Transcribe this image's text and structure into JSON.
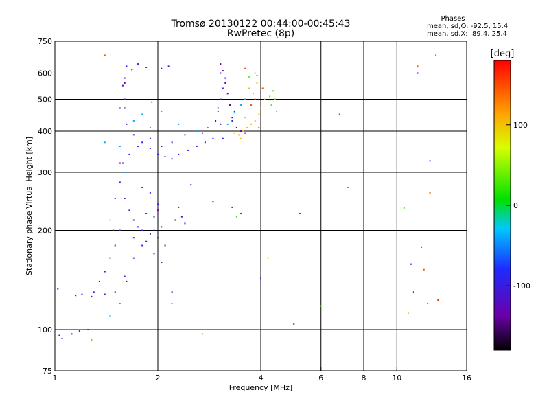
{
  "chart_data": {
    "type": "scatter",
    "title": "Tromsø 20130122 00:44:00-00:45:43",
    "subtitle": "RwPretec (8p)",
    "stats": {
      "heading": "Phases",
      "line_o": "mean, sd,O: -92.5, 15.4",
      "line_x": "mean, sd,X:  89.4, 25.4"
    },
    "xlabel": "Frequency [MHz]",
    "ylabel": "Stationary phase Virtual Height [km]",
    "x_scale": "log",
    "y_scale": "log",
    "xlim": [
      1,
      16
    ],
    "ylim": [
      75,
      750
    ],
    "xticks": [
      1,
      2,
      4,
      6,
      8,
      10,
      16
    ],
    "yticks": [
      75,
      100,
      200,
      300,
      400,
      500,
      600,
      750
    ],
    "x_gridlines": [
      2,
      4,
      6,
      8,
      10
    ],
    "y_gridlines": [
      100,
      200,
      300,
      400,
      500,
      600
    ],
    "grid": true,
    "colorbar": {
      "label": "[deg]",
      "range": [
        -180,
        180
      ],
      "ticks": [
        100,
        0,
        -100
      ],
      "colormap": "rainbow-black-to-red"
    },
    "series": [
      {
        "color_value": -95,
        "points": [
          [
            1.62,
            630
          ],
          [
            1.68,
            615
          ],
          [
            1.75,
            640
          ],
          [
            1.85,
            625
          ],
          [
            2.05,
            620
          ],
          [
            2.15,
            630
          ],
          [
            1.55,
            470
          ],
          [
            1.62,
            420
          ],
          [
            1.7,
            390
          ],
          [
            1.8,
            370
          ],
          [
            1.9,
            355
          ],
          [
            2.0,
            340
          ],
          [
            2.1,
            335
          ],
          [
            2.2,
            330
          ],
          [
            2.3,
            340
          ],
          [
            2.45,
            350
          ],
          [
            2.6,
            360
          ],
          [
            2.75,
            370
          ],
          [
            2.9,
            380
          ],
          [
            1.58,
            320
          ],
          [
            1.65,
            340
          ],
          [
            1.75,
            360
          ],
          [
            1.9,
            380
          ],
          [
            2.05,
            360
          ],
          [
            2.2,
            370
          ],
          [
            2.4,
            390
          ],
          [
            2.7,
            395
          ],
          [
            1.6,
            500
          ],
          [
            1.58,
            550
          ],
          [
            1.6,
            580
          ],
          [
            1.55,
            280
          ],
          [
            1.6,
            250
          ],
          [
            1.65,
            230
          ],
          [
            1.7,
            215
          ],
          [
            1.75,
            205
          ],
          [
            1.8,
            200
          ],
          [
            1.9,
            195
          ],
          [
            2.0,
            190
          ],
          [
            1.55,
            200
          ],
          [
            1.5,
            180
          ],
          [
            1.45,
            165
          ],
          [
            1.4,
            150
          ],
          [
            1.35,
            140
          ],
          [
            1.3,
            130
          ],
          [
            1.2,
            128
          ],
          [
            1.15,
            127
          ],
          [
            1.28,
            126
          ],
          [
            1.4,
            128
          ],
          [
            1.5,
            130
          ],
          [
            1.6,
            145
          ],
          [
            1.7,
            165
          ],
          [
            1.8,
            180
          ],
          [
            1.95,
            170
          ],
          [
            2.05,
            160
          ],
          [
            1.85,
            225
          ],
          [
            1.95,
            220
          ],
          [
            2.05,
            205
          ],
          [
            2.0,
            240
          ],
          [
            1.9,
            260
          ],
          [
            1.8,
            270
          ],
          [
            2.3,
            235
          ],
          [
            2.35,
            220
          ],
          [
            2.4,
            210
          ],
          [
            2.5,
            275
          ],
          [
            1.03,
            96
          ],
          [
            1.05,
            94
          ],
          [
            1.12,
            97
          ],
          [
            1.18,
            99
          ],
          [
            1.25,
            100
          ],
          [
            1.02,
            133
          ],
          [
            3.1,
            380
          ],
          [
            3.05,
            420
          ],
          [
            3.0,
            460
          ],
          [
            3.05,
            500
          ],
          [
            3.1,
            540
          ],
          [
            3.15,
            580
          ],
          [
            3.05,
            600
          ],
          [
            3.3,
            430
          ],
          [
            3.35,
            460
          ],
          [
            2.9,
            245
          ],
          [
            3.3,
            235
          ],
          [
            3.5,
            225
          ],
          [
            4.0,
            143
          ],
          [
            5.0,
            104
          ],
          [
            5.2,
            225
          ],
          [
            11.5,
            600
          ],
          [
            12.5,
            325
          ],
          [
            11.0,
            158
          ],
          [
            11.2,
            130
          ]
        ]
      },
      {
        "color_value": -140,
        "points": [
          [
            3.05,
            640
          ],
          [
            3.1,
            610
          ],
          [
            3.15,
            560
          ],
          [
            3.2,
            520
          ],
          [
            3.25,
            480
          ],
          [
            3.3,
            440
          ],
          [
            3.4,
            410
          ],
          [
            3.5,
            400
          ],
          [
            3.6,
            395
          ],
          [
            3.0,
            470
          ],
          [
            2.95,
            430
          ],
          [
            1.6,
            470
          ],
          [
            1.6,
            560
          ],
          [
            1.55,
            320
          ],
          [
            1.62,
            140
          ],
          [
            1.48,
            200
          ],
          [
            1.7,
            190
          ],
          [
            1.85,
            185
          ],
          [
            2.1,
            180
          ],
          [
            2.0,
            230
          ],
          [
            1.5,
            250
          ],
          [
            1.95,
            200
          ],
          [
            2.25,
            215
          ],
          [
            2.2,
            130
          ]
        ]
      },
      {
        "color_value": -40,
        "points": [
          [
            1.6,
            300
          ],
          [
            1.55,
            360
          ],
          [
            1.7,
            430
          ],
          [
            1.8,
            450
          ],
          [
            1.9,
            410
          ],
          [
            2.3,
            420
          ],
          [
            2.6,
            400
          ],
          [
            2.8,
            410
          ],
          [
            3.2,
            420
          ],
          [
            3.35,
            455
          ],
          [
            3.5,
            480
          ],
          [
            3.6,
            500
          ],
          [
            2.2,
            120
          ],
          [
            1.55,
            120
          ],
          [
            1.45,
            110
          ],
          [
            1.92,
            490
          ],
          [
            2.05,
            460
          ],
          [
            1.4,
            370
          ]
        ]
      },
      {
        "color_value": 30,
        "points": [
          [
            4.3,
            480
          ],
          [
            4.4,
            500
          ],
          [
            4.35,
            530
          ],
          [
            4.45,
            460
          ],
          [
            4.25,
            510
          ],
          [
            3.7,
            585
          ],
          [
            1.28,
            93
          ],
          [
            2.7,
            97
          ],
          [
            6.0,
            118
          ],
          [
            10.5,
            234
          ],
          [
            3.4,
            220
          ],
          [
            1.45,
            215
          ]
        ]
      },
      {
        "color_value": 100,
        "points": [
          [
            3.55,
            400
          ],
          [
            3.65,
            410
          ],
          [
            3.75,
            420
          ],
          [
            3.85,
            430
          ],
          [
            3.95,
            450
          ],
          [
            4.0,
            470
          ],
          [
            3.8,
            520
          ],
          [
            3.9,
            560
          ],
          [
            3.7,
            540
          ],
          [
            3.6,
            440
          ],
          [
            3.45,
            390
          ],
          [
            3.5,
            380
          ],
          [
            4.1,
            500
          ],
          [
            3.35,
            395
          ],
          [
            3.85,
            600
          ],
          [
            4.2,
            165
          ],
          [
            10.8,
            112
          ]
        ]
      },
      {
        "color_value": 150,
        "points": [
          [
            3.9,
            590
          ],
          [
            4.05,
            540
          ],
          [
            3.75,
            480
          ],
          [
            3.85,
            500
          ],
          [
            3.95,
            410
          ],
          [
            3.6,
            620
          ],
          [
            1.4,
            680
          ],
          [
            7.2,
            270
          ],
          [
            11.5,
            630
          ],
          [
            13.0,
            680
          ],
          [
            12.5,
            260
          ],
          [
            12.0,
            152
          ],
          [
            12.3,
            120
          ]
        ]
      },
      {
        "color_value": 175,
        "points": [
          [
            6.8,
            450
          ],
          [
            11.8,
            178
          ],
          [
            13.2,
            123
          ]
        ]
      }
    ]
  }
}
